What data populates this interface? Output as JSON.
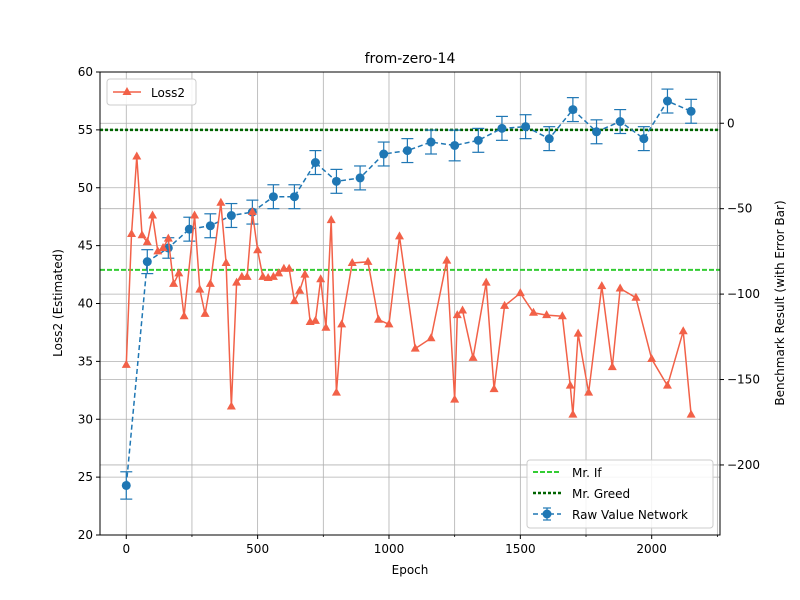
{
  "chart_data": {
    "type": "line",
    "title": "from-zero-14",
    "xlabel": "Epoch",
    "ylabel_left": "Loss2 (Estimated)",
    "ylabel_right": "Benchmark Result (with Error Bar)",
    "xlim": [
      -100,
      2260
    ],
    "ylim_left": [
      20,
      60
    ],
    "ylim_right": [
      -241,
      30
    ],
    "x_ticks": [
      0,
      500,
      1000,
      1500,
      2000
    ],
    "y_ticks_left": [
      20,
      25,
      30,
      35,
      40,
      45,
      50,
      55,
      60
    ],
    "y_ticks_right": [
      -200,
      -150,
      -100,
      -50,
      0
    ],
    "grid": true,
    "legend_left_position": "upper-left",
    "legend_right_position": "lower-right",
    "loss_series": {
      "name": "Loss2",
      "color": "#f26148",
      "x": [
        0,
        20,
        40,
        60,
        80,
        100,
        120,
        140,
        160,
        180,
        200,
        220,
        260,
        280,
        300,
        320,
        360,
        380,
        400,
        420,
        440,
        460,
        480,
        500,
        520,
        540,
        560,
        580,
        600,
        620,
        640,
        660,
        680,
        700,
        720,
        740,
        760,
        780,
        800,
        820,
        860,
        920,
        960,
        1000,
        1040,
        1100,
        1160,
        1220,
        1250,
        1260,
        1280,
        1320,
        1370,
        1400,
        1440,
        1500,
        1550,
        1600,
        1660,
        1690,
        1700,
        1720,
        1760,
        1810,
        1850,
        1880,
        1940,
        2000,
        2060,
        2120,
        2150
      ],
      "values": [
        34.7,
        46.0,
        52.7,
        45.9,
        45.3,
        47.6,
        44.5,
        44.8,
        45.6,
        41.7,
        42.6,
        38.9,
        47.6,
        41.2,
        39.1,
        41.7,
        48.7,
        43.5,
        31.1,
        41.8,
        42.3,
        42.3,
        47.9,
        44.6,
        42.3,
        42.2,
        42.3,
        42.6,
        43.0,
        43.0,
        40.2,
        41.1,
        42.5,
        38.4,
        38.5,
        42.1,
        37.9,
        47.2,
        32.3,
        38.2,
        43.5,
        43.6,
        38.6,
        38.2,
        45.8,
        36.1,
        37.0,
        43.7,
        31.7,
        39.0,
        39.4,
        35.3,
        41.8,
        32.6,
        39.8,
        40.9,
        39.2,
        39.0,
        38.9,
        32.9,
        30.4,
        37.4,
        32.3,
        41.5,
        34.5,
        41.3,
        40.5,
        35.2,
        32.9,
        37.6,
        30.4
      ]
    },
    "benchmark_series": {
      "name": "Raw Value Network",
      "color": "#1f77b4",
      "x": [
        0,
        80,
        160,
        240,
        320,
        400,
        480,
        560,
        640,
        720,
        800,
        890,
        980,
        1070,
        1160,
        1250,
        1340,
        1430,
        1520,
        1610,
        1700,
        1790,
        1880,
        1970,
        2060,
        2150
      ],
      "values": [
        -212,
        -81,
        -73,
        -62,
        -60,
        -54,
        -52,
        -43,
        -43,
        -23,
        -34,
        -32,
        -18,
        -16,
        -11,
        -13,
        -10,
        -3,
        -2,
        -9,
        8,
        -5,
        1,
        -9,
        13,
        7
      ],
      "errors": [
        8,
        7,
        6,
        7,
        7,
        7,
        7,
        7,
        7,
        7,
        7,
        7,
        7,
        7,
        7,
        9,
        7,
        7,
        7,
        7,
        7,
        7,
        7,
        7,
        7,
        7
      ]
    },
    "hlines": [
      {
        "name": "Mr. If",
        "axis": "left",
        "value": 42.9,
        "color": "#33cc33"
      },
      {
        "name": "Mr. Greed",
        "axis": "left",
        "value": 55.0,
        "color": "#006400"
      }
    ]
  }
}
